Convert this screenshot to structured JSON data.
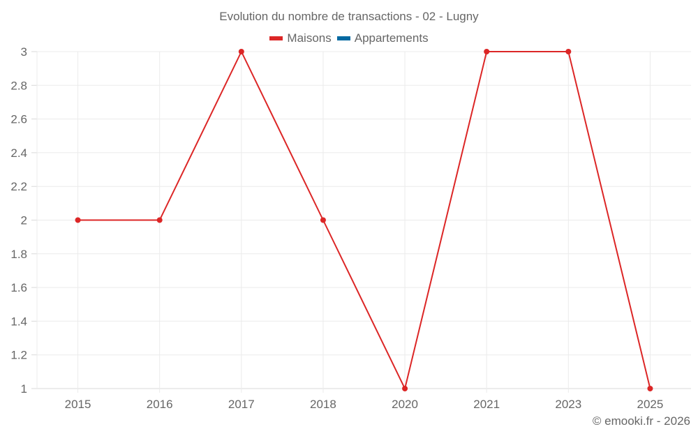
{
  "chart_data": {
    "type": "line",
    "title": "Evolution du nombre de transactions - 02 - Lugny",
    "categories": [
      "2015",
      "2016",
      "2017",
      "2018",
      "2020",
      "2021",
      "2023",
      "2025"
    ],
    "series": [
      {
        "name": "Maisons",
        "color": "#dc2626",
        "values": [
          2,
          2,
          3,
          2,
          1,
          3,
          3,
          1
        ]
      },
      {
        "name": "Appartements",
        "color": "#0369a1",
        "values": []
      }
    ],
    "xlabel": "",
    "ylabel": "",
    "ylim": [
      1,
      3
    ],
    "yticks": [
      "1",
      "1.2",
      "1.4",
      "1.6",
      "1.8",
      "2",
      "2.2",
      "2.4",
      "2.6",
      "2.8",
      "3"
    ],
    "grid": true,
    "legend_position": "top"
  },
  "credit": "© emooki.fr - 2026"
}
